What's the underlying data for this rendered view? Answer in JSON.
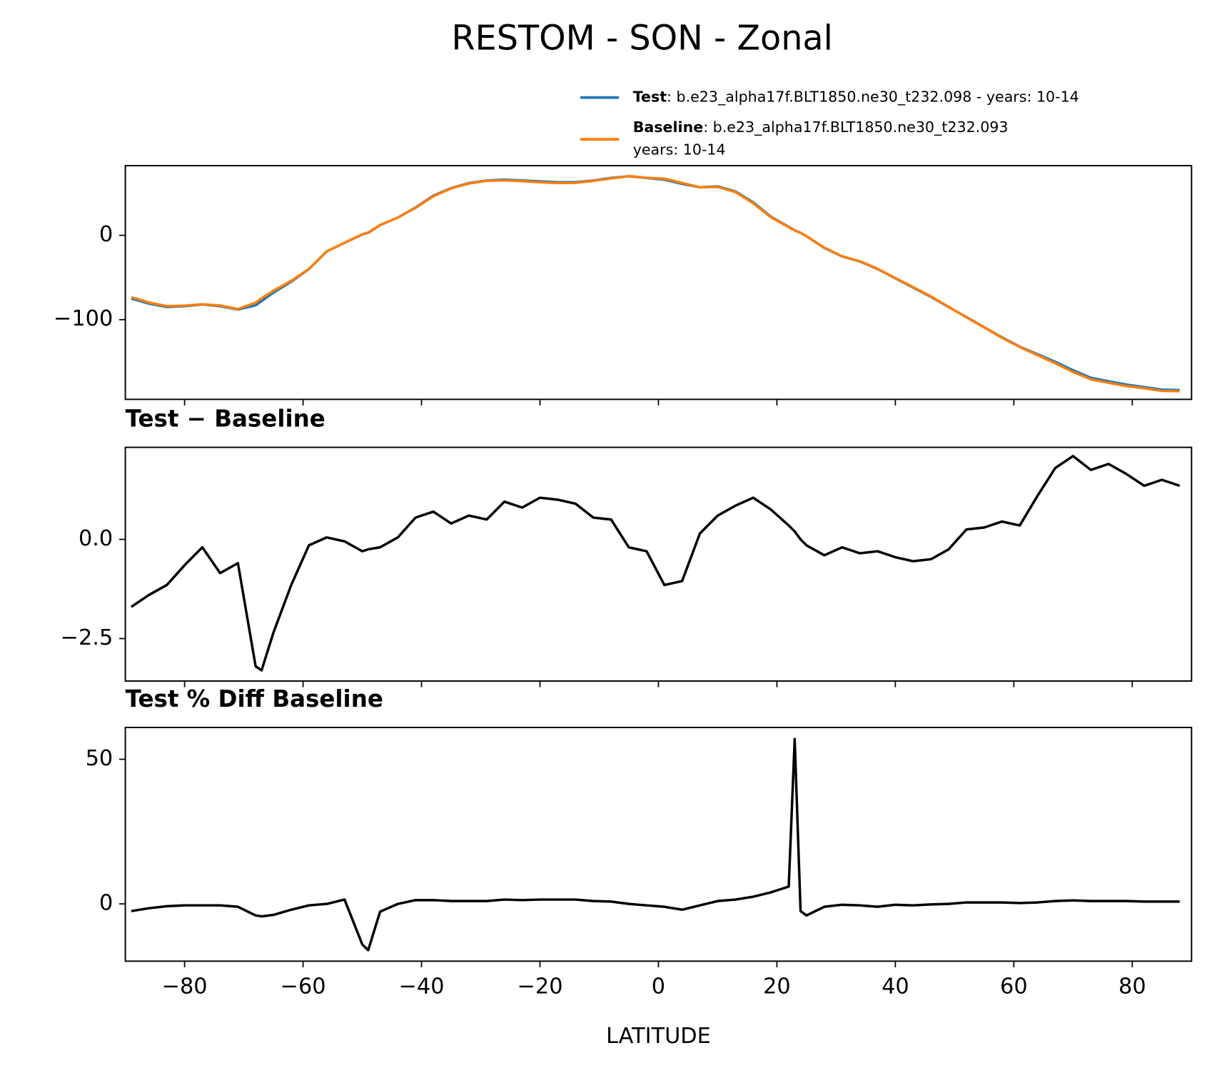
{
  "chart_data": {
    "type": "line",
    "title": "RESTOM - SON - Zonal",
    "xlabel": "LATITUDE",
    "x": [
      -89,
      -86,
      -83,
      -80,
      -77,
      -74,
      -71,
      -68,
      -67,
      -65,
      -62,
      -59,
      -56,
      -53,
      -50,
      -49,
      -47,
      -44,
      -41,
      -38,
      -35,
      -32,
      -29,
      -26,
      -23,
      -20,
      -17,
      -14,
      -11,
      -8,
      -5,
      -2,
      1,
      4,
      7,
      10,
      13,
      16,
      19,
      22,
      23,
      24,
      25,
      28,
      31,
      34,
      37,
      40,
      43,
      46,
      49,
      52,
      55,
      58,
      61,
      64,
      67,
      70,
      73,
      76,
      79,
      82,
      85,
      88
    ],
    "xlim": [
      -90,
      90
    ],
    "xticks": [
      {
        "value": -80,
        "label": "−80"
      },
      {
        "value": -60,
        "label": "−60"
      },
      {
        "value": -40,
        "label": "−40"
      },
      {
        "value": -20,
        "label": "−20"
      },
      0,
      20,
      40,
      60,
      80
    ],
    "panels": [
      {
        "ylim": [
          -194.5,
          82.6
        ],
        "yticks": [
          {
            "value": -100,
            "label": "−100"
          },
          0
        ],
        "series": [
          {
            "name": "Test",
            "label": ": b.e23_alpha17f.BLT1850.ne30_t232.098 - years: 10-14",
            "color": "#1f77b4",
            "values": [
              -75,
              -81,
              -85,
              -84,
              -82,
              -84,
              -88,
              -83,
              -78,
              -68,
              -55,
              -40,
              -19,
              -9,
              1,
              3,
              12,
              21,
              33,
              47,
              56,
              62,
              65,
              66,
              65,
              64,
              63,
              63,
              65,
              68,
              70,
              68,
              66,
              61,
              57,
              58,
              52,
              39,
              22,
              10,
              6,
              3,
              -1,
              -15,
              -25,
              -31,
              -40,
              -51,
              -62,
              -73,
              -85,
              -97,
              -109,
              -121,
              -132,
              -141,
              -150,
              -160,
              -169,
              -173,
              -177,
              -180,
              -183,
              -183.5
            ]
          },
          {
            "name": "Baseline",
            "label": ": b.e23_alpha17f.BLT1850.ne30_t232.093",
            "label2": "years: 10-14",
            "color": "#ff7f0e",
            "values": [
              -73.3,
              -79.6,
              -83.9,
              -83.4,
              -81.8,
              -83.2,
              -87.4,
              -79.8,
              -74.7,
              -65.7,
              -53.9,
              -39.9,
              -19.1,
              -9.0,
              1.3,
              3.3,
              12.2,
              21.0,
              32.5,
              46.3,
              55.6,
              61.4,
              64.5,
              65.1,
              64.2,
              63.0,
              62,
              62.1,
              64.5,
              67.5,
              70.2,
              68.3,
              67.2,
              62.1,
              56.9,
              57.4,
              51.2,
              38.0,
              21.3,
              9.7,
              5.8,
              3.0,
              -0.9,
              -14.6,
              -24.8,
              -30.7,
              -39.7,
              -50.6,
              -61.5,
              -72.5,
              -84.8,
              -97.3,
              -109.3,
              -121.5,
              -132.4,
              -142.1,
              -151.8,
              -162.1,
              -170.8,
              -174.9,
              -178.7,
              -181.4,
              -184.5,
              -184.9
            ]
          }
        ]
      },
      {
        "title": "Test − Baseline",
        "ylim": [
          -3.57,
          2.32
        ],
        "yticks": [
          {
            "value": -2.5,
            "label": "−2.5"
          },
          {
            "value": 0,
            "label": "0.0"
          }
        ],
        "series": [
          {
            "color": "#000000",
            "values": [
              -1.7,
              -1.4,
              -1.15,
              -0.65,
              -0.2,
              -0.85,
              -0.6,
              -3.2,
              -3.3,
              -2.35,
              -1.15,
              -0.15,
              0.05,
              -0.05,
              -0.3,
              -0.25,
              -0.2,
              0.05,
              0.55,
              0.7,
              0.4,
              0.6,
              0.5,
              0.95,
              0.8,
              1.05,
              1.0,
              0.9,
              0.55,
              0.5,
              -0.2,
              -0.3,
              -1.15,
              -1.05,
              0.15,
              0.6,
              0.85,
              1.05,
              0.75,
              0.35,
              0.2,
              0.0,
              -0.15,
              -0.4,
              -0.2,
              -0.35,
              -0.3,
              -0.45,
              -0.55,
              -0.5,
              -0.25,
              0.25,
              0.3,
              0.45,
              0.35,
              1.1,
              1.8,
              2.1,
              1.75,
              1.9,
              1.65,
              1.35,
              1.5,
              1.35
            ]
          }
        ]
      },
      {
        "title": "Test % Diff Baseline",
        "ylim": [
          -19.8,
          61.0
        ],
        "yticks": [
          0,
          50
        ],
        "series": [
          {
            "color": "#000000",
            "values": [
              -2.5,
              -1.5,
              -0.8,
              -0.5,
              -0.5,
              -0.5,
              -1,
              -4,
              -4.3,
              -3.8,
              -2,
              -0.5,
              0,
              1.5,
              -14,
              -16,
              -2.7,
              0,
              1.3,
              1.3,
              1,
              1,
              1,
              1.5,
              1.3,
              1.5,
              1.5,
              1.5,
              1,
              0.8,
              0,
              -0.5,
              -1,
              -2,
              -0.5,
              1,
              1.5,
              2.5,
              4,
              6,
              57,
              -2.5,
              -4,
              -1,
              -0.3,
              -0.5,
              -1,
              -0.3,
              -0.5,
              -0.2,
              0,
              0.5,
              0.5,
              0.5,
              0.3,
              0.5,
              1,
              1.2,
              1,
              1,
              1,
              0.8,
              0.8,
              0.8
            ]
          }
        ]
      }
    ]
  }
}
